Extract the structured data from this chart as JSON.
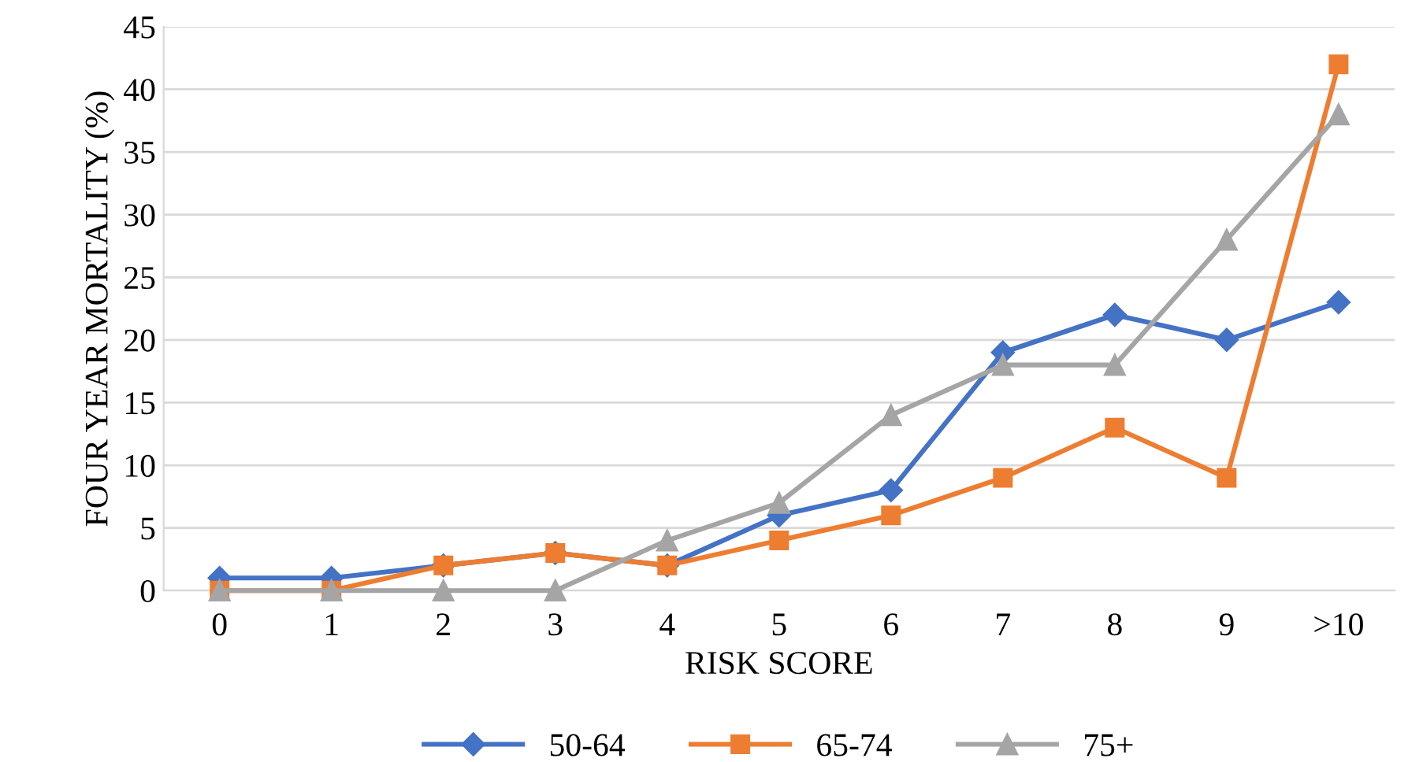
{
  "chart_data": {
    "type": "line",
    "xlabel": "RISK SCORE",
    "ylabel": "FOUR YEAR MORTALITY (%)",
    "categories": [
      "0",
      "1",
      "2",
      "3",
      "4",
      "5",
      "6",
      "7",
      "8",
      "9",
      ">10"
    ],
    "series": [
      {
        "name": "50-64",
        "color": "#4472c4",
        "marker": "diamond",
        "values": [
          1,
          1,
          2,
          3,
          2,
          6,
          8,
          19,
          22,
          20,
          23
        ]
      },
      {
        "name": "65-74",
        "color": "#ed7d31",
        "marker": "square",
        "values": [
          0,
          0,
          2,
          3,
          2,
          4,
          6,
          9,
          13,
          9,
          42
        ]
      },
      {
        "name": "75+",
        "color": "#a5a5a5",
        "marker": "triangle",
        "values": [
          0,
          0,
          0,
          0,
          4,
          7,
          14,
          18,
          18,
          28,
          38
        ]
      }
    ],
    "ylim": [
      0,
      45
    ],
    "yticks": [
      0,
      5,
      10,
      15,
      20,
      25,
      30,
      35,
      40,
      45
    ],
    "grid": "y",
    "legend": "bottom",
    "line_style": "solid"
  }
}
